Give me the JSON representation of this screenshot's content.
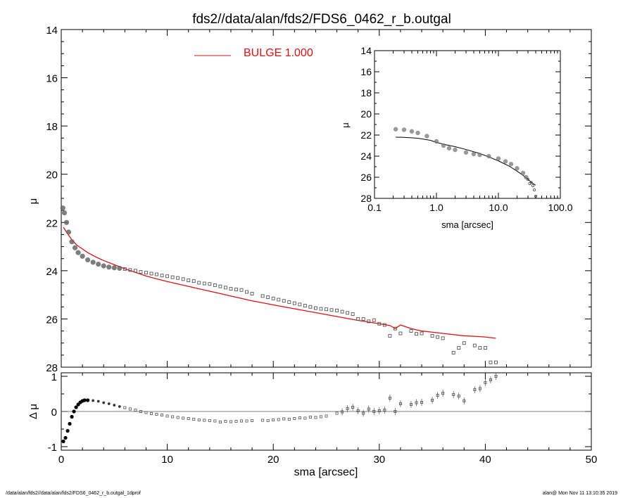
{
  "title": "fds2//data/alan/fds2/FDS6_0462_r_b.outgal",
  "footer": {
    "left": "/data/alan/fds2//data/alan/fds2/FDS6_0462_r_b.outgal_1dprof",
    "right": "alan@  Mon Nov 11 13:10:35 2019"
  },
  "colors": {
    "model": "#dd1111",
    "data": "#555555",
    "axes": "#000000"
  },
  "chart_data": [
    {
      "panel": "main",
      "type": "scatter",
      "xlabel": "",
      "ylabel": "μ",
      "xlim": [
        0,
        50
      ],
      "ylim": [
        28,
        14
      ],
      "y_inverted": true,
      "x_ticks": [],
      "y_ticks": [
        "14",
        "16",
        "18",
        "20",
        "22",
        "24",
        "26",
        "28"
      ],
      "legend": {
        "label": "BULGE  1.000",
        "placement": "top-center"
      },
      "model": {
        "name": "BULGE  1.000",
        "x": [
          0.2,
          0.5,
          1,
          1.5,
          2,
          2.5,
          3,
          3.5,
          4,
          5,
          6,
          7,
          8,
          9,
          10,
          11,
          12,
          13,
          14,
          15,
          16,
          17,
          18,
          19,
          20,
          21,
          22,
          23,
          24,
          25,
          26,
          27,
          28,
          29,
          30,
          31,
          31.5,
          32,
          33,
          34,
          35,
          36,
          37,
          38,
          39,
          40,
          41
        ],
        "y": [
          22.2,
          22.4,
          22.72,
          22.95,
          23.1,
          23.25,
          23.37,
          23.48,
          23.58,
          23.75,
          23.92,
          24.07,
          24.22,
          24.34,
          24.45,
          24.55,
          24.65,
          24.75,
          24.85,
          24.95,
          25.05,
          25.15,
          25.25,
          25.33,
          25.42,
          25.5,
          25.58,
          25.66,
          25.74,
          25.82,
          25.9,
          25.98,
          26.06,
          26.13,
          26.2,
          26.27,
          26.4,
          26.25,
          26.4,
          26.5,
          26.55,
          26.6,
          26.65,
          26.7,
          26.72,
          26.75,
          26.8
        ]
      },
      "data_points": {
        "x": [
          0.15,
          0.3,
          0.5,
          0.7,
          1,
          1.3,
          1.6,
          2,
          2.5,
          3,
          3.5,
          4,
          4.5,
          5,
          5.5,
          6,
          6.5,
          7,
          7.5,
          8,
          8.5,
          9,
          9.5,
          10,
          10.5,
          11,
          11.5,
          12,
          12.5,
          13,
          13.5,
          14,
          14.5,
          15,
          15.5,
          16,
          16.5,
          17,
          17.5,
          18,
          19,
          19.5,
          20,
          20.5,
          21,
          21.5,
          22,
          22.5,
          23,
          23.5,
          24,
          24.5,
          25,
          25.5,
          26,
          26.5,
          27,
          27.5,
          28,
          28.5,
          29,
          29.5,
          30,
          30.5,
          31,
          31.5,
          32,
          33,
          33.5,
          34,
          35,
          35.5,
          36,
          37,
          37.5,
          38,
          39,
          39.5,
          40,
          40.5,
          41
        ],
        "y": [
          21.4,
          21.6,
          22.0,
          22.4,
          22.8,
          23.05,
          23.25,
          23.4,
          23.55,
          23.65,
          23.73,
          23.8,
          23.85,
          23.88,
          23.9,
          23.93,
          23.97,
          24.0,
          24.05,
          24.08,
          24.12,
          24.15,
          24.2,
          24.23,
          24.27,
          24.3,
          24.35,
          24.4,
          24.43,
          24.5,
          24.53,
          24.55,
          24.6,
          24.65,
          24.7,
          24.75,
          24.78,
          24.8,
          24.88,
          24.95,
          25.05,
          25.1,
          25.15,
          25.2,
          25.25,
          25.3,
          25.35,
          25.4,
          25.45,
          25.5,
          25.55,
          25.58,
          25.6,
          25.63,
          25.65,
          25.7,
          25.75,
          25.8,
          26.0,
          26.0,
          26.1,
          26.05,
          26.2,
          26.25,
          26.7,
          26.4,
          26.6,
          26.5,
          26.62,
          26.6,
          26.7,
          26.75,
          26.8,
          27.4,
          27.2,
          27.0,
          27.1,
          27.2,
          27.2,
          27.8,
          27.8
        ]
      }
    },
    {
      "panel": "inset",
      "type": "scatter",
      "xlabel": "sma [arcsec]",
      "ylabel": "μ",
      "x_scale": "log",
      "xlim": [
        0.1,
        100
      ],
      "ylim": [
        28,
        14
      ],
      "y_inverted": true,
      "x_ticks": [
        "0.1",
        "1.0",
        "10.0",
        "100.0"
      ],
      "y_ticks": [
        "14",
        "16",
        "18",
        "20",
        "22",
        "24",
        "26",
        "28"
      ],
      "model": {
        "x": [
          0.22,
          0.3,
          0.5,
          0.8,
          1.0,
          1.5,
          2,
          3,
          5,
          7,
          10,
          15,
          20,
          25,
          30,
          35,
          40
        ],
        "y": [
          22.2,
          22.22,
          22.3,
          22.5,
          22.7,
          22.95,
          23.1,
          23.37,
          23.75,
          24.07,
          24.45,
          24.95,
          25.42,
          25.82,
          26.2,
          26.55,
          26.75
        ]
      },
      "data_points": {
        "x": [
          0.22,
          0.3,
          0.4,
          0.5,
          0.7,
          1.0,
          1.3,
          1.6,
          2,
          3,
          4,
          5,
          7,
          10,
          13,
          16,
          20,
          25,
          28,
          30,
          32,
          34,
          36,
          38,
          40
        ],
        "y": [
          21.45,
          21.5,
          21.65,
          21.8,
          22.1,
          22.6,
          23.0,
          23.25,
          23.4,
          23.65,
          23.8,
          23.88,
          24.0,
          24.23,
          24.5,
          24.75,
          25.15,
          25.6,
          26.0,
          26.2,
          26.6,
          26.5,
          26.8,
          27.2,
          27.8
        ]
      }
    },
    {
      "panel": "residual",
      "type": "scatter",
      "xlabel": "sma [arcsec]",
      "ylabel": "Δ μ",
      "xlim": [
        0,
        50
      ],
      "ylim": [
        -1.1,
        1.1
      ],
      "x_ticks": [
        "0",
        "10",
        "20",
        "30",
        "40",
        "50"
      ],
      "y_ticks": [
        "-1",
        "0",
        "1"
      ],
      "zero_line": 0,
      "x": [
        0.2,
        0.4,
        0.6,
        0.8,
        1,
        1.2,
        1.4,
        1.6,
        1.8,
        2,
        2.2,
        2.5,
        3,
        3.5,
        4,
        4.5,
        5,
        5.5,
        6,
        6.5,
        7,
        7.5,
        8,
        8.5,
        9,
        9.5,
        10,
        10.5,
        11,
        11.5,
        12,
        12.5,
        13,
        13.5,
        14,
        14.5,
        15,
        15.5,
        16,
        16.5,
        17,
        17.5,
        18,
        19,
        19.5,
        20,
        20.5,
        21,
        21.5,
        22,
        22.5,
        23,
        23.5,
        24,
        24.5,
        25,
        26,
        26.5,
        27,
        27.5,
        28,
        28.5,
        29,
        29.5,
        30,
        30.5,
        31,
        31.5,
        32,
        33,
        33.5,
        34,
        35,
        35.5,
        36,
        37,
        37.5,
        38,
        39,
        39.5,
        40,
        40.5,
        41
      ],
      "y": [
        -0.85,
        -0.75,
        -0.55,
        -0.35,
        -0.15,
        0.0,
        0.12,
        0.2,
        0.26,
        0.3,
        0.32,
        0.32,
        0.31,
        0.29,
        0.25,
        0.22,
        0.18,
        0.14,
        0.11,
        0.07,
        0.04,
        0.0,
        -0.03,
        -0.06,
        -0.08,
        -0.1,
        -0.13,
        -0.15,
        -0.17,
        -0.19,
        -0.2,
        -0.22,
        -0.24,
        -0.25,
        -0.26,
        -0.27,
        -0.3,
        -0.28,
        -0.29,
        -0.28,
        -0.27,
        -0.27,
        -0.26,
        -0.25,
        -0.26,
        -0.24,
        -0.23,
        -0.21,
        -0.22,
        -0.2,
        -0.18,
        -0.19,
        -0.16,
        -0.17,
        -0.15,
        -0.13,
        -0.05,
        -0.01,
        0.08,
        0.12,
        0.02,
        -0.05,
        0.07,
        0.0,
        0.02,
        0.04,
        0.38,
        0.0,
        0.22,
        0.2,
        0.25,
        0.26,
        0.32,
        0.46,
        0.52,
        0.48,
        0.44,
        0.3,
        0.62,
        0.65,
        0.82,
        0.9,
        1.0
      ]
    }
  ]
}
